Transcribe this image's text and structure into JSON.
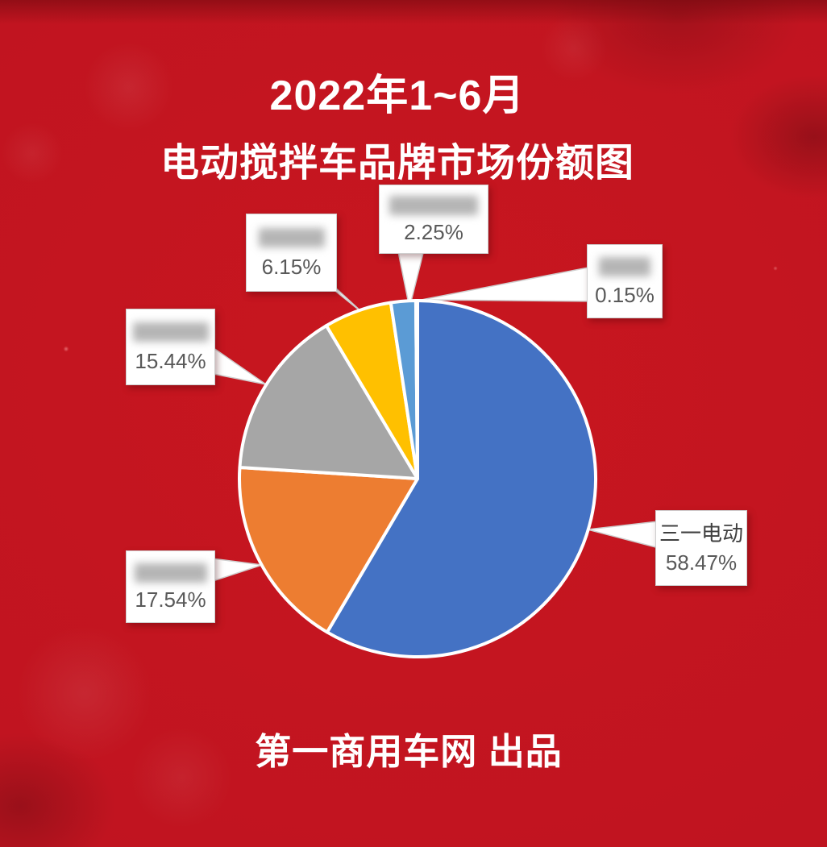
{
  "title": {
    "line1": "2022年1~6月",
    "line2": "电动搅拌车品牌市场份额图"
  },
  "footer": {
    "text": "第一商用车网 出品"
  },
  "background_color": "#c0141f",
  "chart_data": {
    "type": "pie",
    "title": "2022年1~6月 电动搅拌车品牌市场份额图",
    "direction": "clockwise",
    "start_angle_deg": 0,
    "unit": "%",
    "legend": "none",
    "label_style": "external callout boxes with percent values; brand names blurred except first slice",
    "slices": [
      {
        "name": "三一电动",
        "value": 58.47,
        "pct_text": "58.47%",
        "color": "#4472C4",
        "label_redacted": false
      },
      {
        "name": "",
        "value": 17.54,
        "pct_text": "17.54%",
        "color": "#ED7D31",
        "label_redacted": true
      },
      {
        "name": "",
        "value": 15.44,
        "pct_text": "15.44%",
        "color": "#A6A6A6",
        "label_redacted": true
      },
      {
        "name": "",
        "value": 6.15,
        "pct_text": "6.15%",
        "color": "#FFC000",
        "label_redacted": true
      },
      {
        "name": "",
        "value": 2.25,
        "pct_text": "2.25%",
        "color": "#5B9BD5",
        "label_redacted": true
      },
      {
        "name": "",
        "value": 0.15,
        "pct_text": "0.15%",
        "color": "#FFFFFF",
        "label_redacted": true
      }
    ]
  }
}
